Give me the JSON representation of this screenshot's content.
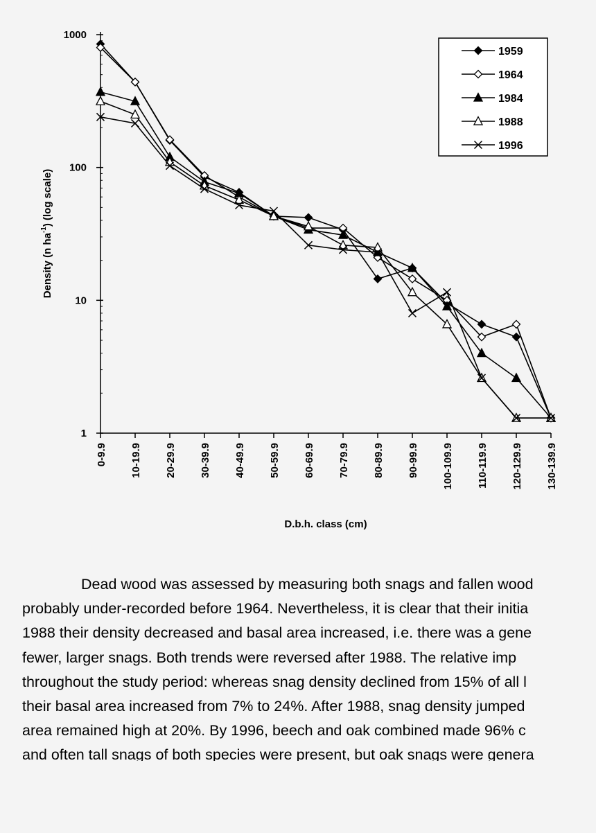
{
  "chart_data": {
    "type": "line",
    "yscale": "log",
    "ylim": [
      1,
      1000
    ],
    "ylabel_main": "Density  (n ha",
    "ylabel_sup": "-1",
    "ylabel_tail": ")  (log scale)",
    "xlabel": "D.b.h. class (cm)",
    "yticks": [
      "1",
      "10",
      "100",
      "1000"
    ],
    "categories": [
      "0-9.9",
      "10-19.9",
      "20-29.9",
      "30-39.9",
      "40-49.9",
      "50-59.9",
      "60-69.9",
      "70-79.9",
      "80-89.9",
      "90-99.9",
      "100-109.9",
      "110-119.9",
      "120-129.9",
      "130-139.9"
    ],
    "legend_position": "top-right",
    "series": [
      {
        "name": "1959",
        "marker": "diamond-filled",
        "values": [
          850,
          440,
          160,
          85,
          65,
          43,
          42,
          34,
          14.5,
          17.5,
          9.5,
          6.6,
          5.3,
          1.3
        ]
      },
      {
        "name": "1964",
        "marker": "diamond-open",
        "values": [
          800,
          440,
          162,
          87,
          60,
          43,
          35,
          35,
          21,
          14.5,
          10,
          5.3,
          6.6,
          1.3
        ]
      },
      {
        "name": "1984",
        "marker": "triangle-filled",
        "values": [
          370,
          315,
          120,
          78,
          64,
          43,
          34,
          31,
          23,
          17.5,
          9,
          4,
          2.6,
          1.3
        ]
      },
      {
        "name": "1988",
        "marker": "triangle-open",
        "values": [
          315,
          250,
          110,
          73,
          57,
          43,
          36,
          26,
          25,
          11.5,
          6.6,
          2.6,
          1.3,
          1.3
        ]
      },
      {
        "name": "1996",
        "marker": "x",
        "values": [
          240,
          215,
          103,
          69,
          52,
          47,
          26,
          24,
          23,
          8,
          11.5,
          2.6,
          1.3,
          1.3
        ]
      }
    ]
  },
  "text": {
    "lines": [
      "Dead wood was assessed by measuring both snags and fallen wood",
      "probably under-recorded before 1964.  Nevertheless, it is clear that their initia",
      "1988 their density decreased and basal area increased, i.e. there was a gene",
      "fewer, larger snags.  Both trends were reversed after 1988.  The relative imp",
      "throughout the study period: whereas snag density declined from 15% of all l",
      "their basal area increased from 7% to 24%.  After 1988, snag density jumped",
      "area remained high at 20%.  By 1996, beech and oak combined made 96% c",
      "and often tall snags of both species were present, but oak snags were genera"
    ]
  }
}
